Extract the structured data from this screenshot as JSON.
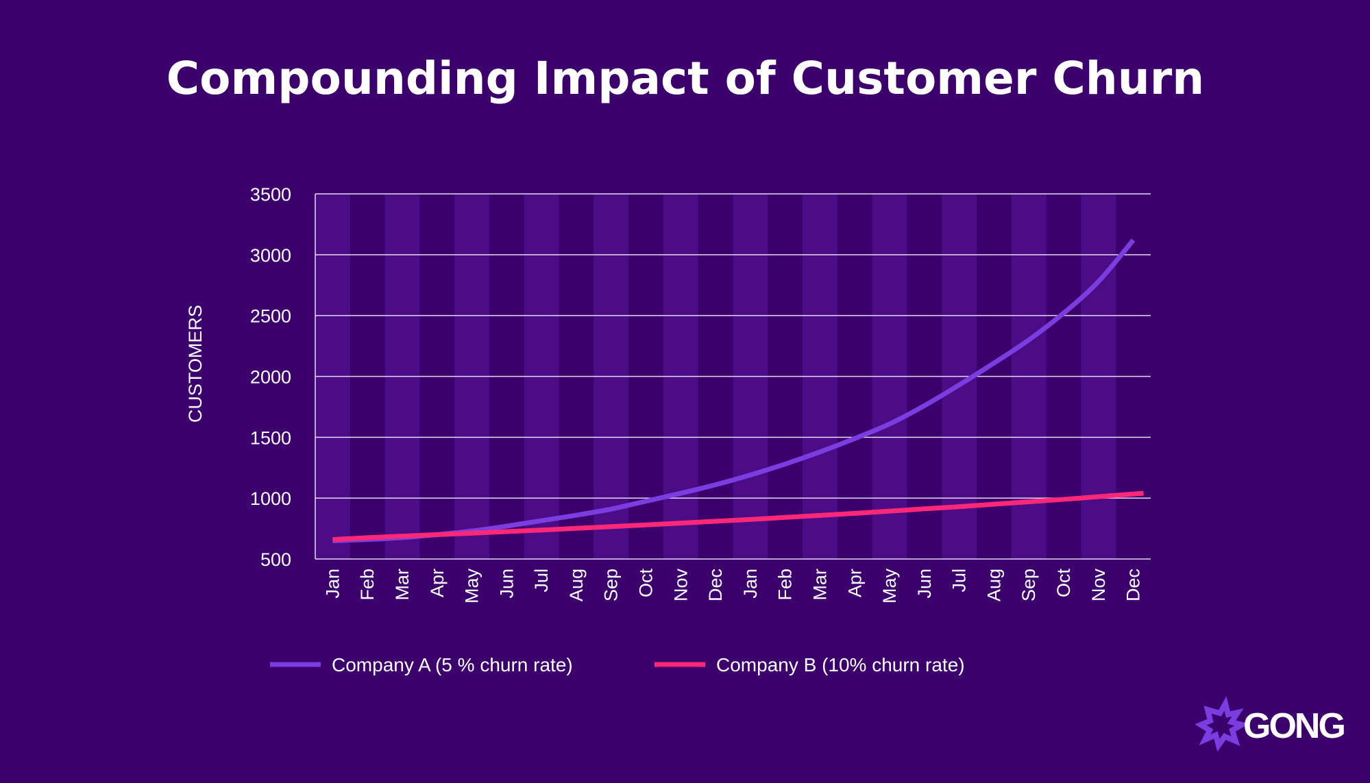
{
  "colors": {
    "background": "#3c006d",
    "band": "#4b0c86",
    "grid": "#e6dcf5",
    "company_a": "#7b3de0",
    "company_b": "#ff2777",
    "logo_mark": "#7b3de0"
  },
  "logo": {
    "text": "GONG"
  },
  "chart_data": {
    "type": "line",
    "title": "Compounding Impact of Customer Churn",
    "xlabel": "",
    "ylabel": "CUSTOMERS",
    "ylim": [
      500,
      3500
    ],
    "yticks": [
      500,
      1000,
      1500,
      2000,
      2500,
      3000,
      3500
    ],
    "grid": true,
    "alternating_column_bands": true,
    "legend_position": "bottom",
    "categories": [
      "Jan",
      "Feb",
      "Mar",
      "Apr",
      "May",
      "Jun",
      "Jul",
      "Aug",
      "Sep",
      "Oct",
      "Nov",
      "Dec",
      "Jan",
      "Feb",
      "Mar",
      "Apr",
      "May",
      "Jun",
      "Jul",
      "Aug",
      "Sep",
      "Oct",
      "Nov",
      "Dec"
    ],
    "series": [
      {
        "name": "Company A (5 % churn rate)",
        "values": [
          650,
          660,
          675,
          700,
          730,
          770,
          815,
          860,
          910,
          975,
          1040,
          1110,
          1190,
          1280,
          1380,
          1490,
          1610,
          1760,
          1930,
          2110,
          2300,
          2520,
          2780,
          3120
        ]
      },
      {
        "name": "Company B (10% churn rate)",
        "values": [
          660,
          675,
          688,
          700,
          712,
          725,
          738,
          752,
          766,
          780,
          795,
          810,
          825,
          842,
          858,
          875,
          893,
          912,
          930,
          950,
          970,
          990,
          1012,
          1040
        ]
      }
    ]
  }
}
